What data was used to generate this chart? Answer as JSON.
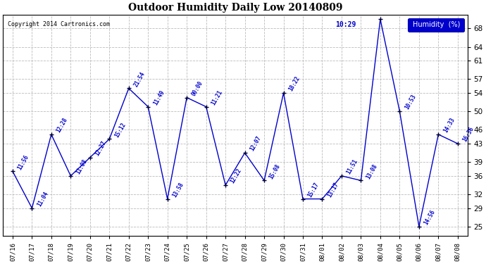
{
  "title": "Outdoor Humidity Daily Low 20140809",
  "copyright": "Copyright 2014 Cartronics.com",
  "legend_label": "Humidity  (%)",
  "background_color": "#ffffff",
  "plot_bg_color": "#ffffff",
  "line_color": "#0000cc",
  "point_color": "#000033",
  "label_color": "#0000cc",
  "grid_color": "#bbbbbb",
  "ylim": [
    23,
    71
  ],
  "yticks": [
    25,
    29,
    32,
    36,
    39,
    43,
    46,
    50,
    54,
    57,
    61,
    64,
    68
  ],
  "dates": [
    "07/16",
    "07/17",
    "07/18",
    "07/19",
    "07/20",
    "07/21",
    "07/22",
    "07/23",
    "07/24",
    "07/25",
    "07/26",
    "07/27",
    "07/28",
    "07/29",
    "07/30",
    "07/31",
    "08/01",
    "08/02",
    "08/03",
    "08/04",
    "08/05",
    "08/06",
    "08/07",
    "08/08"
  ],
  "values": [
    37,
    29,
    45,
    36,
    40,
    44,
    55,
    51,
    31,
    53,
    51,
    34,
    41,
    35,
    54,
    31,
    31,
    36,
    35,
    70,
    50,
    25,
    45,
    43
  ],
  "time_labels": [
    "11:56",
    "11:04",
    "12:28",
    "11:08",
    "12:27",
    "15:12",
    "21:54",
    "11:49",
    "13:58",
    "00:00",
    "11:21",
    "12:22",
    "12:07",
    "15:08",
    "18:22",
    "15:17",
    "13:17",
    "11:51",
    "13:08",
    "10:29",
    "10:53",
    "14:56",
    "14:33",
    "16:36"
  ],
  "peak_idx": 19,
  "peak_label": "10:29",
  "figsize": [
    6.9,
    3.75
  ],
  "dpi": 100
}
